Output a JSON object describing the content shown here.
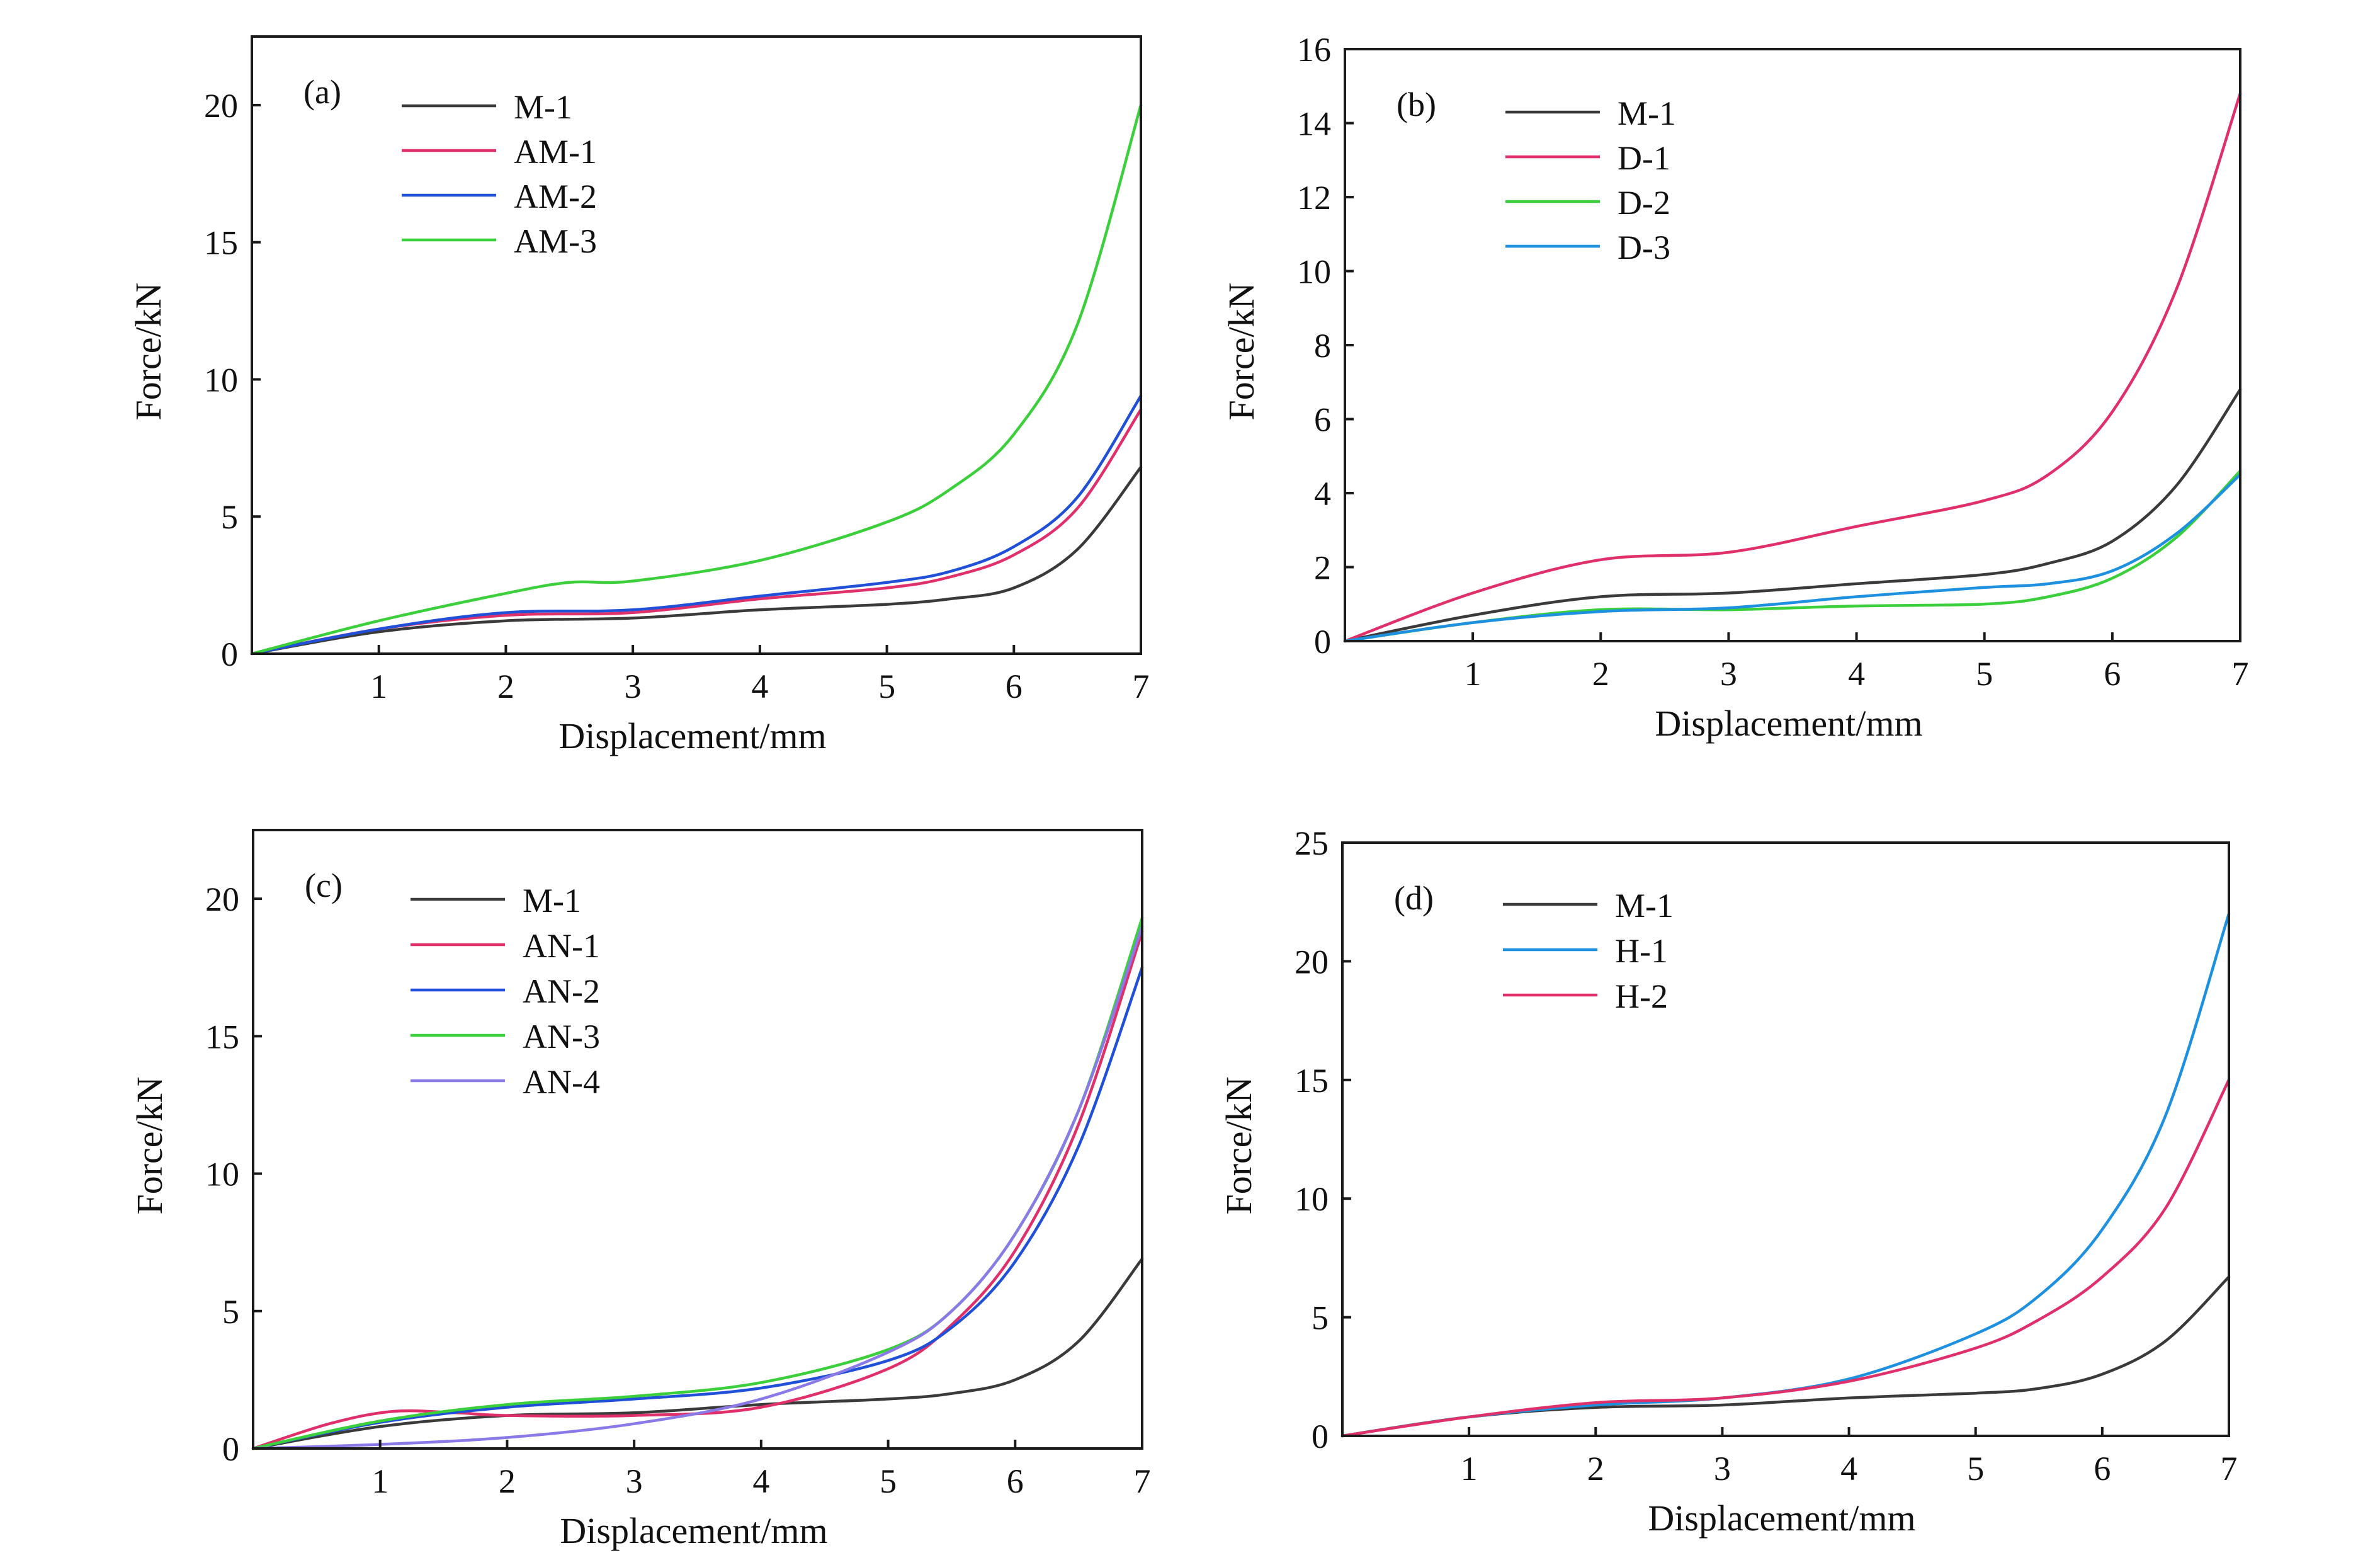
{
  "figure": {
    "panel_count": 4
  },
  "chart_data": [
    {
      "id": "a",
      "type": "line",
      "panel_label": "(a)",
      "xlabel": "Displacement/mm",
      "ylabel": "Force/kN",
      "xlim": [
        0,
        7
      ],
      "ylim": [
        0,
        22.5
      ],
      "xticks": [
        1,
        2,
        3,
        4,
        5,
        6,
        7
      ],
      "yticks": [
        0,
        5,
        10,
        15,
        20
      ],
      "legend_position": "top-left",
      "series": [
        {
          "name": "M-1",
          "color": "#3a3a3a",
          "points": [
            [
              0,
              0
            ],
            [
              1,
              0.8
            ],
            [
              2,
              1.2
            ],
            [
              3,
              1.3
            ],
            [
              4,
              1.6
            ],
            [
              5,
              1.8
            ],
            [
              5.5,
              2.0
            ],
            [
              6,
              2.4
            ],
            [
              6.5,
              3.8
            ],
            [
              7,
              6.8
            ]
          ]
        },
        {
          "name": "AM-1",
          "color": "#e0306a",
          "points": [
            [
              0,
              0
            ],
            [
              1,
              0.9
            ],
            [
              2,
              1.4
            ],
            [
              3,
              1.5
            ],
            [
              4,
              2.0
            ],
            [
              5,
              2.4
            ],
            [
              5.5,
              2.8
            ],
            [
              6,
              3.6
            ],
            [
              6.5,
              5.3
            ],
            [
              7,
              8.9
            ]
          ]
        },
        {
          "name": "AM-2",
          "color": "#2050d8",
          "points": [
            [
              0,
              0
            ],
            [
              1,
              0.9
            ],
            [
              2,
              1.5
            ],
            [
              3,
              1.6
            ],
            [
              4,
              2.1
            ],
            [
              5,
              2.6
            ],
            [
              5.5,
              3.0
            ],
            [
              6,
              3.9
            ],
            [
              6.5,
              5.7
            ],
            [
              7,
              9.4
            ]
          ]
        },
        {
          "name": "AM-3",
          "color": "#3ccf3c",
          "points": [
            [
              0,
              0
            ],
            [
              1,
              1.2
            ],
            [
              2,
              2.2
            ],
            [
              2.5,
              2.6
            ],
            [
              3,
              2.65
            ],
            [
              4,
              3.4
            ],
            [
              5,
              4.8
            ],
            [
              5.5,
              6.0
            ],
            [
              6,
              8.0
            ],
            [
              6.5,
              12.0
            ],
            [
              7,
              20.0
            ]
          ]
        }
      ]
    },
    {
      "id": "b",
      "type": "line",
      "panel_label": "(b)",
      "xlabel": "Displacement/mm",
      "ylabel": "Force/kN",
      "xlim": [
        0,
        7
      ],
      "ylim": [
        0,
        16
      ],
      "xticks": [
        1,
        2,
        3,
        4,
        5,
        6,
        7
      ],
      "yticks": [
        0,
        2,
        4,
        6,
        8,
        10,
        12,
        14,
        16
      ],
      "legend_position": "top-left",
      "series": [
        {
          "name": "M-1",
          "color": "#3a3a3a",
          "points": [
            [
              0,
              0
            ],
            [
              1,
              0.7
            ],
            [
              2,
              1.2
            ],
            [
              3,
              1.3
            ],
            [
              4,
              1.55
            ],
            [
              5,
              1.8
            ],
            [
              5.5,
              2.1
            ],
            [
              6,
              2.7
            ],
            [
              6.5,
              4.2
            ],
            [
              7,
              6.8
            ]
          ]
        },
        {
          "name": "D-1",
          "color": "#e0306a",
          "points": [
            [
              0,
              0
            ],
            [
              1,
              1.3
            ],
            [
              2,
              2.2
            ],
            [
              3,
              2.4
            ],
            [
              4,
              3.1
            ],
            [
              5,
              3.8
            ],
            [
              5.5,
              4.5
            ],
            [
              6,
              6.2
            ],
            [
              6.5,
              9.5
            ],
            [
              7,
              14.8
            ]
          ]
        },
        {
          "name": "D-2",
          "color": "#3ccf3c",
          "points": [
            [
              0,
              0
            ],
            [
              1,
              0.5
            ],
            [
              2,
              0.85
            ],
            [
              3,
              0.85
            ],
            [
              4,
              0.95
            ],
            [
              5,
              1.0
            ],
            [
              5.5,
              1.2
            ],
            [
              6,
              1.7
            ],
            [
              6.5,
              2.8
            ],
            [
              7,
              4.6
            ]
          ]
        },
        {
          "name": "D-3",
          "color": "#1e90e0",
          "points": [
            [
              0,
              0
            ],
            [
              1,
              0.5
            ],
            [
              2,
              0.8
            ],
            [
              3,
              0.9
            ],
            [
              4,
              1.2
            ],
            [
              5,
              1.45
            ],
            [
              5.5,
              1.55
            ],
            [
              6,
              1.9
            ],
            [
              6.5,
              2.9
            ],
            [
              7,
              4.5
            ]
          ]
        }
      ]
    },
    {
      "id": "c",
      "type": "line",
      "panel_label": "(c)",
      "xlabel": "Displacement/mm",
      "ylabel": "Force/kN",
      "xlim": [
        0,
        7
      ],
      "ylim": [
        0,
        22.5
      ],
      "xticks": [
        1,
        2,
        3,
        4,
        5,
        6,
        7
      ],
      "yticks": [
        0,
        5,
        10,
        15,
        20
      ],
      "legend_position": "top-left",
      "series": [
        {
          "name": "M-1",
          "color": "#3a3a3a",
          "points": [
            [
              0,
              0
            ],
            [
              1,
              0.8
            ],
            [
              2,
              1.2
            ],
            [
              3,
              1.3
            ],
            [
              4,
              1.6
            ],
            [
              5,
              1.8
            ],
            [
              5.5,
              2.0
            ],
            [
              6,
              2.5
            ],
            [
              6.5,
              3.9
            ],
            [
              7,
              6.9
            ]
          ]
        },
        {
          "name": "AN-1",
          "color": "#e0306a",
          "points": [
            [
              0,
              0
            ],
            [
              0.6,
              0.9
            ],
            [
              1.1,
              1.35
            ],
            [
              1.6,
              1.3
            ],
            [
              2,
              1.2
            ],
            [
              3,
              1.2
            ],
            [
              4,
              1.5
            ],
            [
              5,
              2.9
            ],
            [
              5.5,
              4.5
            ],
            [
              6,
              7.2
            ],
            [
              6.5,
              11.8
            ],
            [
              7,
              18.8
            ]
          ]
        },
        {
          "name": "AN-2",
          "color": "#2050d8",
          "points": [
            [
              0,
              0
            ],
            [
              1,
              0.95
            ],
            [
              2,
              1.5
            ],
            [
              3,
              1.8
            ],
            [
              4,
              2.2
            ],
            [
              5,
              3.2
            ],
            [
              5.5,
              4.4
            ],
            [
              6,
              6.8
            ],
            [
              6.5,
              11.0
            ],
            [
              7,
              17.5
            ]
          ]
        },
        {
          "name": "AN-3",
          "color": "#3ccf3c",
          "points": [
            [
              0,
              0
            ],
            [
              1,
              1.0
            ],
            [
              2,
              1.6
            ],
            [
              3,
              1.9
            ],
            [
              4,
              2.4
            ],
            [
              5,
              3.6
            ],
            [
              5.5,
              5.0
            ],
            [
              6,
              7.8
            ],
            [
              6.5,
              12.3
            ],
            [
              7,
              19.3
            ]
          ]
        },
        {
          "name": "AN-4",
          "color": "#8a7ae8",
          "points": [
            [
              0,
              0
            ],
            [
              1,
              0.15
            ],
            [
              2,
              0.4
            ],
            [
              3,
              0.9
            ],
            [
              4,
              1.8
            ],
            [
              5,
              3.5
            ],
            [
              5.5,
              5.0
            ],
            [
              6,
              7.8
            ],
            [
              6.5,
              12.3
            ],
            [
              7,
              19.0
            ]
          ]
        }
      ]
    },
    {
      "id": "d",
      "type": "line",
      "panel_label": "(d)",
      "xlabel": "Displacement/mm",
      "ylabel": "Force/kN",
      "xlim": [
        0,
        7
      ],
      "ylim": [
        0,
        25
      ],
      "xticks": [
        1,
        2,
        3,
        4,
        5,
        6,
        7
      ],
      "yticks": [
        0,
        5,
        10,
        15,
        20,
        25
      ],
      "legend_position": "top-left",
      "series": [
        {
          "name": "M-1",
          "color": "#3a3a3a",
          "points": [
            [
              0,
              0
            ],
            [
              1,
              0.8
            ],
            [
              2,
              1.2
            ],
            [
              3,
              1.3
            ],
            [
              4,
              1.6
            ],
            [
              5,
              1.8
            ],
            [
              5.5,
              2.0
            ],
            [
              6,
              2.6
            ],
            [
              6.5,
              4.0
            ],
            [
              7,
              6.7
            ]
          ]
        },
        {
          "name": "H-1",
          "color": "#1e90e0",
          "points": [
            [
              0,
              0
            ],
            [
              1,
              0.8
            ],
            [
              2,
              1.3
            ],
            [
              3,
              1.6
            ],
            [
              4,
              2.4
            ],
            [
              5,
              4.3
            ],
            [
              5.5,
              5.9
            ],
            [
              6,
              8.7
            ],
            [
              6.5,
              13.5
            ],
            [
              7,
              22.0
            ]
          ]
        },
        {
          "name": "H-2",
          "color": "#e0306a",
          "points": [
            [
              0,
              0
            ],
            [
              1,
              0.8
            ],
            [
              2,
              1.4
            ],
            [
              3,
              1.6
            ],
            [
              4,
              2.3
            ],
            [
              5,
              3.7
            ],
            [
              5.5,
              4.9
            ],
            [
              6,
              6.7
            ],
            [
              6.5,
              9.6
            ],
            [
              7,
              15.0
            ]
          ]
        }
      ]
    }
  ]
}
